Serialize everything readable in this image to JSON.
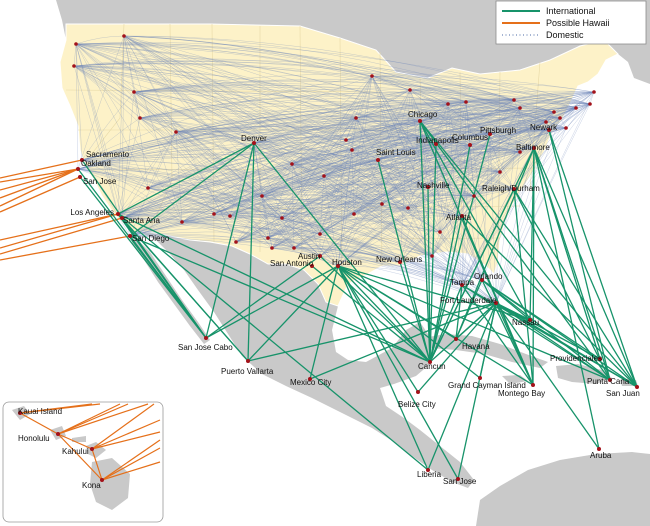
{
  "colors": {
    "ocean": "#ffffff",
    "land": "#c9c9c9",
    "usa": "#fdf2c8",
    "state_line": "#e8d9a6",
    "border": "#ffffff",
    "international": "#17936a",
    "hawaii": "#e5701a",
    "domestic": "#6f87b8",
    "airport": "#a3121a"
  },
  "legend": {
    "international": "International",
    "hawaii": "Possible Hawaii",
    "domestic": "Domestic"
  },
  "airports": [
    {
      "id": "sacramento",
      "label": "Sacramento"
    },
    {
      "id": "oakland",
      "label": "Oakland"
    },
    {
      "id": "sanjose",
      "label": "San Jose"
    },
    {
      "id": "losangeles",
      "label": "Los Angeles"
    },
    {
      "id": "santaana",
      "label": "Santa Ana"
    },
    {
      "id": "sandiego",
      "label": "San Diego"
    },
    {
      "id": "denver",
      "label": "Denver"
    },
    {
      "id": "saintlouis",
      "label": "Saint Louis"
    },
    {
      "id": "chicago",
      "label": "Chicago"
    },
    {
      "id": "indianapolis",
      "label": "Indianapolis"
    },
    {
      "id": "columbus",
      "label": "Columbus"
    },
    {
      "id": "pittsburgh",
      "label": "Pittsburgh"
    },
    {
      "id": "newark",
      "label": "Newark"
    },
    {
      "id": "baltimore",
      "label": "Baltimore"
    },
    {
      "id": "nashville",
      "label": "Nashville"
    },
    {
      "id": "raleigh",
      "label": "Raleigh/Durham"
    },
    {
      "id": "atlanta",
      "label": "Atlanta"
    },
    {
      "id": "austin",
      "label": "Austin"
    },
    {
      "id": "sanantonio",
      "label": "San Antonio"
    },
    {
      "id": "houston",
      "label": "Houston"
    },
    {
      "id": "neworleans",
      "label": "New Orleans"
    },
    {
      "id": "orlando",
      "label": "Orlando"
    },
    {
      "id": "tampa",
      "label": "Tampa"
    },
    {
      "id": "fortlauderdale",
      "label": "Fort Lauderdale"
    },
    {
      "id": "nassau",
      "label": "Nassau"
    },
    {
      "id": "havana",
      "label": "Havana"
    },
    {
      "id": "sanjosecabo",
      "label": "San Jose Cabo"
    },
    {
      "id": "puertovallarta",
      "label": "Puerto Vallarta"
    },
    {
      "id": "mexicocity",
      "label": "Mexico City"
    },
    {
      "id": "cancun",
      "label": "Cancun"
    },
    {
      "id": "grandcayman",
      "label": "Grand Cayman Island"
    },
    {
      "id": "montegobay",
      "label": "Montego Bay"
    },
    {
      "id": "belizecity",
      "label": "Belize City"
    },
    {
      "id": "providenciales",
      "label": "Providenciales"
    },
    {
      "id": "puntacana",
      "label": "Punta Cana"
    },
    {
      "id": "sanjuan",
      "label": "San Juan"
    },
    {
      "id": "aruba",
      "label": "Aruba"
    },
    {
      "id": "liberia",
      "label": "Liberia"
    },
    {
      "id": "sanjosecr",
      "label": "San Jose"
    }
  ],
  "inset": {
    "airports": [
      {
        "id": "kauai",
        "label": "Kauai Island"
      },
      {
        "id": "honolulu",
        "label": "Honolulu"
      },
      {
        "id": "kahului",
        "label": "Kahului"
      },
      {
        "id": "kona",
        "label": "Kona"
      }
    ]
  }
}
